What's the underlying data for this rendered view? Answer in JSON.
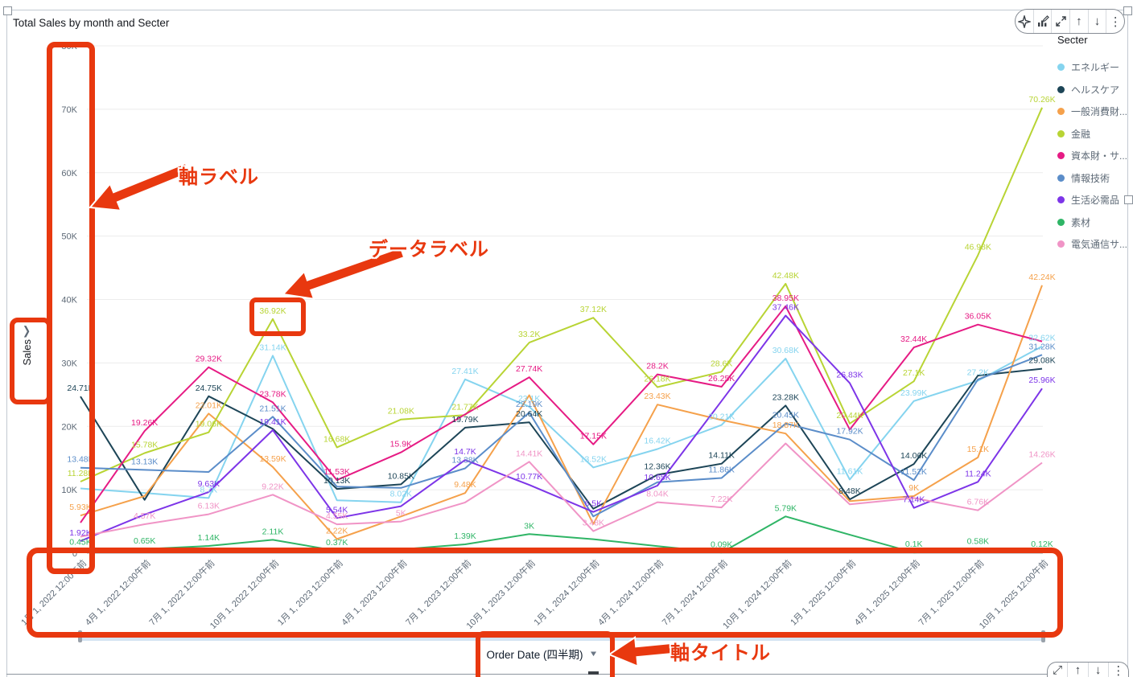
{
  "header": {
    "title": "Total Sales by month and Secter"
  },
  "toolbar": {
    "icons": [
      {
        "name": "insights-sparkle-icon"
      },
      {
        "name": "edit-visual-icon"
      },
      {
        "name": "maximize-icon"
      },
      {
        "name": "move-up-icon"
      },
      {
        "name": "move-down-icon"
      },
      {
        "name": "menu-kebab-icon"
      }
    ]
  },
  "legend": {
    "title": "Secter",
    "items": [
      {
        "label": "エネルギー",
        "color": "#85d4ef"
      },
      {
        "label": "ヘルスケア",
        "color": "#1d4557"
      },
      {
        "label": "一般消費財...",
        "color": "#f5a14b"
      },
      {
        "label": "金融",
        "color": "#b8d434"
      },
      {
        "label": "資本財・サ...",
        "color": "#e61b84"
      },
      {
        "label": "情報技術",
        "color": "#5b8dc9"
      },
      {
        "label": "生活必需品",
        "color": "#7d35e8"
      },
      {
        "label": "素材",
        "color": "#2fb566"
      },
      {
        "label": "電気通信サ...",
        "color": "#f094c6"
      }
    ]
  },
  "y_axis": {
    "title": "Sales",
    "ticks": [
      "0",
      "10K",
      "20K",
      "30K",
      "40K",
      "50K",
      "60K",
      "70K",
      "80K"
    ],
    "max_k": 80
  },
  "x_axis": {
    "title": "Order Date (四半期)"
  },
  "slider": {
    "type": "date-range-scrubber"
  },
  "annotations": {
    "highlight_color": "#e8380f",
    "axis_label_text": "軸ラベル",
    "data_label_text": "データラベル",
    "axis_title_text": "軸タイトル",
    "boxed_data_label_value": "36.92K"
  },
  "chart_data": {
    "type": "line",
    "title": "Total Sales by month and Secter",
    "xlabel": "Order Date (四半期)",
    "ylabel": "Sales",
    "ylim_k": [
      0,
      80
    ],
    "grid": "horizontal",
    "legend_position": "right",
    "categories": [
      "1月 1, 2022 12:00午前",
      "4月 1, 2022 12:00午前",
      "7月 1, 2022 12:00午前",
      "10月 1, 2022 12:00午前",
      "1月 1, 2023 12:00午前",
      "4月 1, 2023 12:00午前",
      "7月 1, 2023 12:00午前",
      "10月 1, 2023 12:00午前",
      "1月 1, 2024 12:00午前",
      "4月 1, 2024 12:00午前",
      "7月 1, 2024 12:00午前",
      "10月 1, 2024 12:00午前",
      "1月 1, 2025 12:00午前",
      "4月 1, 2025 12:00午前",
      "7月 1, 2025 12:00午前",
      "10月 1, 2025 12:00午前"
    ],
    "series": [
      {
        "name": "エネルギー",
        "color": "#85d4ef",
        "values_k": [
          10.2,
          9.5,
          8.7,
          31.14,
          8.34,
          8.02,
          27.41,
          23.1,
          13.52,
          16.42,
          20.21,
          30.68,
          11.61,
          23.99,
          27.2,
          32.62
        ],
        "labels": [
          null,
          null,
          "8.7K",
          "31.14K",
          null,
          "8.02K",
          "27.41K",
          "23.1K",
          "13.52K",
          "16.42K",
          "20.21K",
          "30.68K",
          "11.61K",
          "23.99K",
          "27.2K",
          "32.62K"
        ]
      },
      {
        "name": "ヘルスケア",
        "color": "#1d4557",
        "values_k": [
          24.71,
          8.4,
          24.75,
          19.6,
          10.13,
          10.85,
          19.79,
          20.64,
          7.0,
          12.36,
          14.11,
          23.28,
          8.48,
          14.06,
          28.0,
          29.08
        ],
        "labels": [
          "24.71K",
          null,
          "24.75K",
          null,
          "10.13K",
          "10.85K",
          "19.79K",
          "20.64K",
          null,
          "12.36K",
          "14.11K",
          "23.28K",
          "8.48K",
          "14.06K",
          null,
          "29.08K"
        ]
      },
      {
        "name": "一般消費財...",
        "color": "#f5a14b",
        "values_k": [
          5.93,
          9.0,
          22.01,
          13.59,
          2.22,
          5.8,
          9.48,
          24.9,
          4.6,
          23.43,
          21.0,
          18.87,
          8.2,
          9.0,
          15.1,
          42.24
        ],
        "labels": [
          "5.93K",
          null,
          "22.01K",
          "13.59K",
          "2.22K",
          null,
          "9.48K",
          null,
          null,
          "23.43K",
          null,
          "18.87K",
          null,
          "9K",
          "15.1K",
          "42.24K"
        ]
      },
      {
        "name": "金融",
        "color": "#b8d434",
        "values_k": [
          11.28,
          15.78,
          19.06,
          36.92,
          16.68,
          21.08,
          21.77,
          33.2,
          37.12,
          26.18,
          28.6,
          42.48,
          20.44,
          27.1,
          46.98,
          70.26
        ],
        "labels": [
          "11.28K",
          "15.78K",
          "19.06K",
          "36.92K",
          "16.68K",
          "21.08K",
          "21.77K",
          "33.2K",
          "37.12K",
          "26.18K",
          "28.6K",
          "42.48K",
          "20.44K",
          "27.1K",
          "46.98K",
          "70.26K"
        ]
      },
      {
        "name": "資本財・サ...",
        "color": "#e61b84",
        "values_k": [
          4.8,
          19.26,
          29.32,
          23.78,
          11.53,
          15.9,
          21.9,
          27.74,
          17.15,
          28.2,
          26.25,
          38.95,
          19.5,
          32.44,
          36.05,
          33.4
        ],
        "labels": [
          null,
          "19.26K",
          "29.32K",
          "23.78K",
          "11.53K",
          "15.9K",
          null,
          "27.74K",
          "17.15K",
          "28.2K",
          "26.25K",
          "38.95K",
          null,
          "32.44K",
          "36.05K",
          null
        ]
      },
      {
        "name": "情報技術",
        "color": "#5b8dc9",
        "values_k": [
          13.48,
          13.13,
          12.8,
          21.51,
          10.5,
          10.3,
          13.38,
          22.19,
          5.8,
          11.2,
          11.86,
          20.45,
          17.92,
          11.52,
          27.4,
          31.28
        ],
        "labels": [
          "13.48K",
          "13.13K",
          null,
          "21.51K",
          null,
          null,
          "13.38K",
          "22.19K",
          null,
          null,
          "11.86K",
          "20.45K",
          "17.92K",
          "11.52K",
          null,
          "31.28K"
        ]
      },
      {
        "name": "生活必需品",
        "color": "#7d35e8",
        "values_k": [
          1.92,
          6.1,
          9.63,
          19.41,
          5.54,
          7.4,
          14.7,
          10.77,
          6.5,
          10.65,
          24.0,
          37.46,
          26.83,
          7.14,
          11.24,
          25.96
        ],
        "labels": [
          "1.92K",
          null,
          "9.63K",
          "19.41K",
          "5.54K",
          null,
          "14.7K",
          "10.77K",
          "6.5K",
          "10.65K",
          null,
          "37.46K",
          "26.83K",
          "7.14K",
          "11.24K",
          "25.96K"
        ]
      },
      {
        "name": "素材",
        "color": "#2fb566",
        "values_k": [
          0.45,
          0.65,
          1.14,
          2.11,
          0.37,
          0.6,
          1.39,
          3.0,
          2.2,
          1.1,
          0.09,
          5.79,
          2.9,
          0.1,
          0.58,
          0.12
        ],
        "labels": [
          "0.45K",
          "0.65K",
          "1.14K",
          "2.11K",
          "0.37K",
          null,
          "1.39K",
          "3K",
          null,
          null,
          "0.09K",
          "5.79K",
          null,
          "0.1K",
          "0.58K",
          "0.12K"
        ]
      },
      {
        "name": "電気通信サ...",
        "color": "#f094c6",
        "values_k": [
          2.6,
          4.57,
          6.13,
          9.22,
          4.55,
          5.0,
          8.0,
          14.41,
          3.48,
          8.04,
          7.22,
          17.3,
          7.7,
          8.7,
          6.76,
          14.26
        ],
        "labels": [
          null,
          "4.57K",
          "6.13K",
          "9.22K",
          "4.55K",
          "5K",
          null,
          "14.41K",
          "3.48K",
          "8.04K",
          "7.22K",
          null,
          null,
          null,
          "6.76K",
          "14.26K"
        ]
      }
    ]
  }
}
